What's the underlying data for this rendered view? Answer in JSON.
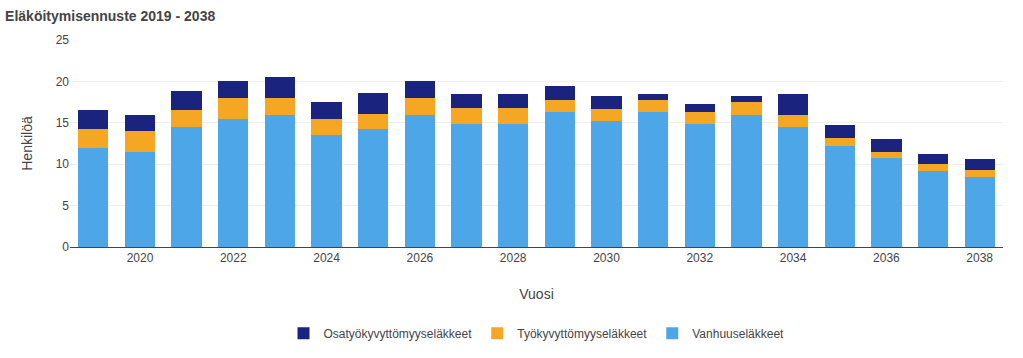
{
  "chart_data": {
    "type": "bar",
    "title": "Eläköitymisennuste 2019 - 2038",
    "xlabel": "Vuosi",
    "ylabel": "Henkilöä",
    "categories": [
      null,
      "2020",
      null,
      "2022",
      null,
      "2024",
      null,
      "2026",
      null,
      "2028",
      null,
      "2030",
      null,
      "2032",
      null,
      "2034",
      null,
      "2036",
      null,
      "2038"
    ],
    "series": [
      {
        "name": "Vanhuuseläkkeet",
        "color": "#4da6e8",
        "values": [
          12.0,
          11.5,
          14.5,
          15.5,
          16.0,
          13.5,
          14.3,
          16.0,
          14.8,
          14.8,
          16.3,
          15.2,
          16.3,
          14.8,
          16.0,
          14.5,
          12.2,
          10.7,
          9.2,
          8.5
        ]
      },
      {
        "name": "Työkyvyttömyyseläkkeet",
        "color": "#f5a623",
        "values": [
          2.3,
          2.5,
          2.0,
          2.5,
          2.0,
          2.0,
          1.8,
          2.0,
          2.0,
          2.0,
          1.5,
          1.5,
          1.5,
          1.5,
          1.5,
          1.5,
          1.0,
          0.8,
          0.8,
          0.8
        ]
      },
      {
        "name": "Osatyökyvyttömyyseläkkeet",
        "color": "#1a237e",
        "values": [
          2.2,
          2.0,
          2.3,
          2.0,
          2.5,
          2.0,
          2.5,
          2.0,
          1.7,
          1.7,
          1.7,
          1.5,
          0.7,
          1.0,
          0.7,
          2.5,
          1.5,
          1.5,
          1.2,
          1.3
        ]
      }
    ],
    "stacked": true,
    "ylim": [
      0,
      25
    ],
    "yticks": [
      0,
      5,
      10,
      15,
      20,
      25
    ],
    "grid": true,
    "legend": "bottom"
  }
}
